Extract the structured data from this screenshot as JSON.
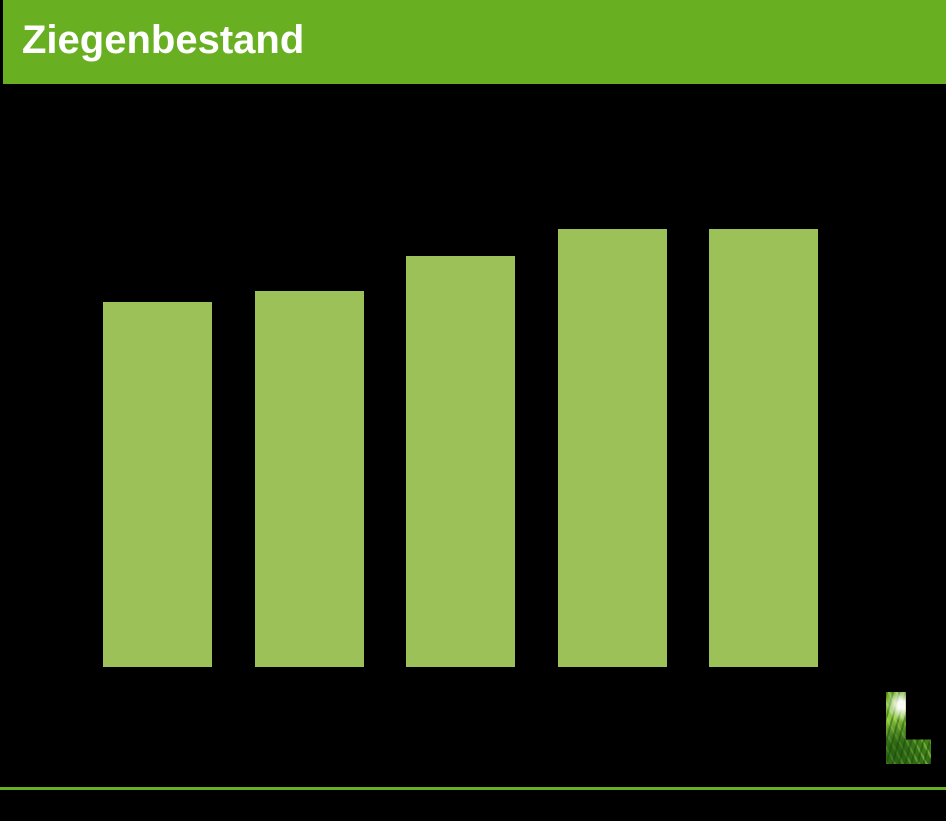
{
  "slide": {
    "background": "#000000",
    "header": {
      "title": "Ziegenbestand",
      "background": "#69AF22",
      "text_color": "#FFFFFF"
    },
    "footer": {
      "rule_color": "#69AF22",
      "logo_icon": "grass-textured-letter-L"
    }
  },
  "chart_data": {
    "type": "bar",
    "title": "Ziegenbestand",
    "categories": [
      "",
      "",
      "",
      "",
      ""
    ],
    "values": [
      83.3,
      85.9,
      93.8,
      100,
      100
    ],
    "values_unit": "percent of tallest bar; no numeric axis, tick labels or data labels are visible in the image",
    "xlabel": "",
    "ylabel": "",
    "axes_visible": false,
    "grid": false,
    "legend": false,
    "bar_color": "#9BC158",
    "plot_background": "#000000"
  }
}
